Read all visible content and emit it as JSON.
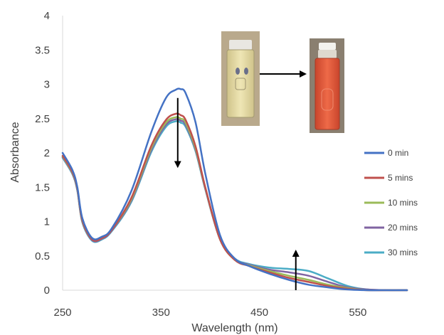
{
  "chart_data": {
    "type": "line",
    "title": "",
    "xlabel": "Wavelength (nm)",
    "ylabel": "Absorbance",
    "xlim": [
      250,
      600
    ],
    "ylim": [
      0,
      4
    ],
    "x_ticks": [
      250,
      350,
      450,
      550
    ],
    "y_ticks": [
      0,
      0.5,
      1,
      1.5,
      2,
      2.5,
      3,
      3.5,
      4
    ],
    "y_tick_labels": [
      "0",
      "0.5",
      "1",
      "1.5",
      "2",
      "2.5",
      "3",
      "3.5",
      "4"
    ],
    "grid": false,
    "legend_position": "right",
    "series": [
      {
        "name": "0 min",
        "color": "#4472C4",
        "x": [
          250,
          260,
          265,
          270,
          280,
          290,
          300,
          320,
          340,
          355,
          365,
          370,
          375,
          385,
          395,
          410,
          425,
          440,
          460,
          480,
          500,
          520,
          540,
          560,
          580,
          600
        ],
        "y": [
          2.0,
          1.75,
          1.5,
          1.05,
          0.76,
          0.78,
          0.9,
          1.45,
          2.3,
          2.8,
          2.92,
          2.93,
          2.87,
          2.45,
          1.7,
          0.8,
          0.46,
          0.35,
          0.24,
          0.15,
          0.08,
          0.04,
          0.01,
          0.0,
          0.0,
          0.0
        ]
      },
      {
        "name": "5 mins",
        "color": "#C0504D",
        "x": [
          250,
          260,
          265,
          270,
          280,
          290,
          300,
          320,
          340,
          355,
          365,
          370,
          375,
          385,
          395,
          410,
          425,
          440,
          460,
          480,
          500,
          520,
          540,
          560,
          580,
          600
        ],
        "y": [
          1.96,
          1.72,
          1.48,
          1.02,
          0.74,
          0.76,
          0.88,
          1.35,
          2.1,
          2.48,
          2.57,
          2.55,
          2.48,
          2.1,
          1.5,
          0.74,
          0.44,
          0.35,
          0.26,
          0.18,
          0.12,
          0.06,
          0.02,
          0.0,
          0.0,
          0.0
        ]
      },
      {
        "name": "10 mins",
        "color": "#9BBB59",
        "x": [
          250,
          260,
          265,
          270,
          280,
          290,
          300,
          320,
          340,
          355,
          365,
          370,
          375,
          385,
          395,
          410,
          425,
          440,
          460,
          480,
          500,
          520,
          540,
          560,
          580,
          600
        ],
        "y": [
          1.95,
          1.71,
          1.47,
          1.01,
          0.74,
          0.76,
          0.88,
          1.33,
          2.07,
          2.44,
          2.52,
          2.5,
          2.44,
          2.07,
          1.49,
          0.74,
          0.44,
          0.36,
          0.28,
          0.21,
          0.15,
          0.08,
          0.03,
          0.0,
          0.0,
          0.0
        ]
      },
      {
        "name": "20 mins",
        "color": "#8064A2",
        "x": [
          250,
          260,
          265,
          270,
          280,
          290,
          300,
          320,
          340,
          355,
          365,
          370,
          375,
          385,
          395,
          410,
          425,
          440,
          460,
          480,
          500,
          520,
          540,
          560,
          580,
          600
        ],
        "y": [
          1.94,
          1.7,
          1.46,
          1.0,
          0.73,
          0.75,
          0.87,
          1.31,
          2.04,
          2.41,
          2.49,
          2.47,
          2.41,
          2.05,
          1.48,
          0.74,
          0.45,
          0.37,
          0.3,
          0.26,
          0.21,
          0.12,
          0.04,
          0.01,
          0.0,
          0.0
        ]
      },
      {
        "name": "30 mins",
        "color": "#4BACC6",
        "x": [
          250,
          260,
          265,
          270,
          280,
          290,
          300,
          320,
          340,
          355,
          365,
          370,
          375,
          385,
          395,
          410,
          425,
          440,
          460,
          480,
          500,
          520,
          540,
          560,
          580,
          600
        ],
        "y": [
          1.93,
          1.69,
          1.45,
          0.99,
          0.72,
          0.74,
          0.86,
          1.29,
          2.01,
          2.38,
          2.46,
          2.44,
          2.38,
          2.03,
          1.47,
          0.74,
          0.46,
          0.38,
          0.33,
          0.31,
          0.28,
          0.17,
          0.06,
          0.01,
          0.0,
          0.0
        ]
      }
    ],
    "annotations": [
      {
        "type": "arrow",
        "direction": "down",
        "x": 367,
        "y_from": 2.8,
        "y_to": 1.8
      },
      {
        "type": "arrow",
        "direction": "up",
        "x": 487,
        "y_from": 0.0,
        "y_to": 0.57
      },
      {
        "type": "photo-arrow",
        "direction": "right",
        "from": "yellow-vial-photo",
        "to": "red-vial-photo"
      }
    ]
  },
  "photos": {
    "vial_before_color": "#e8dca0",
    "vial_after_color": "#e35a3a"
  }
}
